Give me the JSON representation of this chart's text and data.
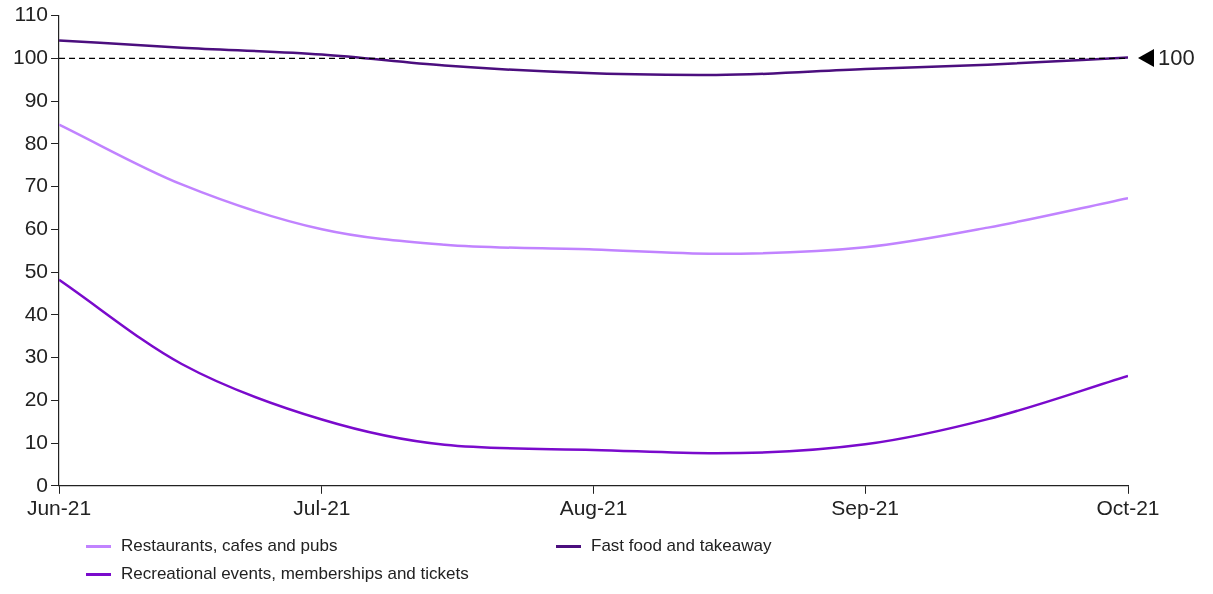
{
  "chart_data": {
    "type": "line",
    "x": [
      "2021-06-01",
      "2021-06-15",
      "2021-07-01",
      "2021-07-15",
      "2021-08-01",
      "2021-08-15",
      "2021-09-01",
      "2021-09-15",
      "2021-10-01"
    ],
    "series": [
      {
        "name": "Restaurants, cafes and pubs",
        "color": "#c183ff",
        "values": [
          84.5,
          70.5,
          60,
          56.4,
          55.3,
          54.3,
          55.8,
          60.4,
          67.3
        ]
      },
      {
        "name": "Fast food and takeaway",
        "color": "#4b0e7e",
        "values": [
          104.2,
          102.5,
          100.9,
          98.3,
          96.5,
          96.1,
          97.5,
          98.5,
          100.2
        ]
      },
      {
        "name": "Recreational events, memberships and tickets",
        "color": "#7a0acc",
        "values": [
          48.2,
          28.5,
          15.5,
          9.6,
          8.4,
          7.6,
          9.7,
          15.6,
          25.7
        ]
      }
    ],
    "xlim": [
      "2021-06-01",
      "2021-10-01"
    ],
    "xticks": [
      {
        "value": "2021-06-01",
        "label": "Jun-21"
      },
      {
        "value": "2021-07-01",
        "label": "Jul-21"
      },
      {
        "value": "2021-08-01",
        "label": "Aug-21"
      },
      {
        "value": "2021-09-01",
        "label": "Sep-21"
      },
      {
        "value": "2021-10-01",
        "label": "Oct-21"
      }
    ],
    "ylim": [
      0,
      110
    ],
    "yticks": [
      0,
      10,
      20,
      30,
      40,
      50,
      60,
      70,
      80,
      90,
      100,
      110
    ],
    "ref_lines": [
      {
        "axis": "y",
        "value": 100,
        "label": "100",
        "color": "#000000",
        "line_style": "dashed"
      }
    ],
    "grid": false,
    "legend": "bottom",
    "marker": "none",
    "line_style": "solid"
  }
}
